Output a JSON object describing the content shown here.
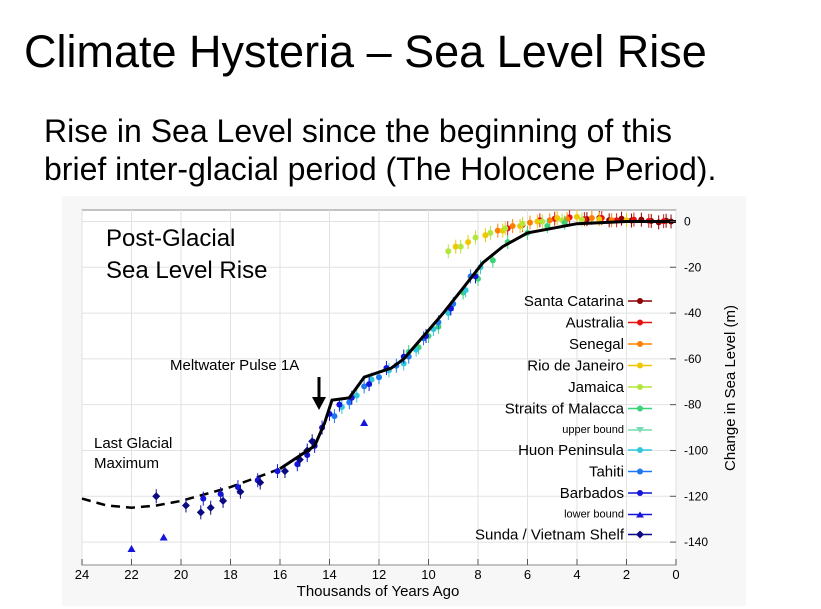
{
  "slide": {
    "title": "Climate Hysteria – Sea Level Rise",
    "subtitle_line1": "Rise in Sea Level since the beginning of this",
    "subtitle_line2": "brief inter-glacial period (The Holocene Period)."
  },
  "chart_data": {
    "type": "scatter",
    "title_line1": "Post-Glacial",
    "title_line2": "Sea Level Rise",
    "xlabel": "Thousands of Years Ago",
    "ylabel": "Change in Sea Level (m)",
    "xlim": [
      24,
      0
    ],
    "ylim": [
      -150,
      5
    ],
    "x_ticks": [
      24,
      22,
      20,
      18,
      16,
      14,
      12,
      10,
      8,
      6,
      4,
      2,
      0
    ],
    "y_ticks": [
      0,
      -20,
      -40,
      -60,
      -80,
      -100,
      -120,
      -140
    ],
    "grid": true,
    "legend_position": "right",
    "annotations": [
      {
        "text": "Meltwater Pulse 1A",
        "x": 14.6,
        "y": -80
      },
      {
        "text_line1": "Last Glacial",
        "text_line2": "Maximum",
        "x": 22.5,
        "y": -118
      }
    ],
    "trend_line": {
      "name": "",
      "x": [
        16,
        14.6,
        14.2,
        13.9,
        13.2,
        12.6,
        11.5,
        11.0,
        10.2,
        9.4,
        8.6,
        7.8,
        7.0,
        6.0,
        5.0,
        4.0,
        2.0,
        0.0
      ],
      "y": [
        -108,
        -98,
        -88,
        -78,
        -77,
        -68,
        -64,
        -60,
        -50,
        -40,
        -29,
        -18,
        -11,
        -5,
        -3,
        -1,
        0,
        0
      ]
    },
    "glacial_estimate": {
      "x": [
        24,
        23,
        22,
        21,
        20,
        19,
        18,
        17,
        16
      ],
      "y": [
        -121,
        -124,
        -125,
        -124,
        -122,
        -119,
        -116,
        -112,
        -108
      ]
    },
    "series": [
      {
        "name": "Santa Catarina",
        "color": "#8b0000",
        "marker": "circle",
        "x": [
          3.6,
          3.1,
          2.7,
          2.2,
          1.8,
          1.4,
          1.0,
          0.7,
          0.4,
          0.2
        ],
        "y": [
          1.0,
          1.5,
          0.5,
          1.2,
          0.4,
          0.8,
          0.2,
          -0.4,
          0.3,
          0.0
        ]
      },
      {
        "name": "Australia",
        "color": "#e81010",
        "marker": "circle",
        "x": [
          6.8,
          6.2,
          5.5,
          4.9,
          4.3,
          3.7,
          3.0,
          2.4,
          1.7,
          1.1,
          0.5
        ],
        "y": [
          -3.0,
          -1.5,
          0.5,
          1.2,
          1.8,
          1.0,
          1.5,
          0.5,
          0.8,
          0.3,
          0.1
        ]
      },
      {
        "name": "Senegal",
        "color": "#ff8000",
        "marker": "circle",
        "x": [
          7.2,
          6.6,
          5.9,
          5.1,
          4.4,
          3.4,
          2.6
        ],
        "y": [
          -4.0,
          -2.0,
          -0.5,
          0.5,
          1.0,
          1.5,
          0.5
        ]
      },
      {
        "name": "Rio de Janeiro",
        "color": "#f0c800",
        "marker": "circle",
        "x": [
          8.9,
          8.4,
          7.7,
          7.0,
          6.3,
          5.6,
          4.8,
          4.0,
          3.1,
          2.0
        ],
        "y": [
          -11.0,
          -9.0,
          -6.0,
          -4.0,
          -2.0,
          0.0,
          1.5,
          2.0,
          1.0,
          0.5
        ]
      },
      {
        "name": "Jamaica",
        "color": "#b4e63c",
        "marker": "circle",
        "x": [
          9.2,
          8.7,
          8.1,
          7.5,
          6.9,
          6.2,
          5.4,
          4.6,
          3.8
        ],
        "y": [
          -13.0,
          -11.0,
          -7.0,
          -5.0,
          -3.0,
          -1.0,
          0.0,
          0.5,
          0.8
        ]
      },
      {
        "name": "Straits of Malacca",
        "color": "#3cd278",
        "marker": "circle",
        "x": [
          10.8,
          10.4,
          10.0,
          9.6,
          9.1,
          8.6,
          8.0,
          7.4,
          6.8,
          6.0,
          5.2,
          4.5
        ],
        "y": [
          -57.0,
          -55.0,
          -50.0,
          -46.0,
          -38.0,
          -31.0,
          -25.0,
          -17.0,
          -9.0,
          -5.0,
          -2.0,
          -0.5
        ]
      },
      {
        "name": "Huon Peninsula",
        "color": "#32c8dc",
        "marker": "circle",
        "x": [
          13.5,
          12.9,
          12.3,
          11.6,
          11.0,
          10.5,
          9.8,
          9.2,
          8.5,
          7.9
        ],
        "y": [
          -81.0,
          -76.0,
          -69.0,
          -65.0,
          -62.0,
          -56.0,
          -47.0,
          -40.0,
          -30.0,
          -20.0
        ]
      },
      {
        "name": "Tahiti",
        "color": "#1e78f0",
        "marker": "circle",
        "x": [
          13.8,
          13.2,
          12.6,
          12.0,
          11.3,
          10.8,
          10.2,
          9.6,
          9.0,
          8.3
        ],
        "y": [
          -85.0,
          -79.0,
          -72.0,
          -68.0,
          -63.0,
          -59.0,
          -51.0,
          -44.0,
          -36.0,
          -24.0
        ]
      },
      {
        "name": "Barbados",
        "color": "#1414dc",
        "marker": "circle",
        "x": [
          19.1,
          18.4,
          17.7,
          16.9,
          16.1,
          15.3,
          14.9,
          14.6,
          14.3,
          14.0,
          13.6,
          13.1,
          12.4,
          11.7,
          11.0,
          10.1,
          9.1,
          8.1
        ],
        "y": [
          -121.0,
          -119.0,
          -116.0,
          -113.0,
          -109.0,
          -106.0,
          -102.0,
          -98.0,
          -90.0,
          -84.0,
          -80.0,
          -77.0,
          -71.0,
          -64.0,
          -59.0,
          -50.0,
          -38.0,
          -24.0
        ]
      },
      {
        "name": "Sunda / Vietnam Shelf",
        "color": "#0a0a82",
        "marker": "diamond",
        "x": [
          21.0,
          19.8,
          19.2,
          18.8,
          18.3,
          17.6,
          16.8,
          15.8,
          15.2,
          14.9,
          14.7
        ],
        "y": [
          -120.0,
          -124.0,
          -127.0,
          -125.0,
          -122.0,
          -118.0,
          -114.0,
          -109.0,
          -104.0,
          -100.0,
          -96.0
        ]
      }
    ],
    "upper_bound": {
      "name": "upper bound",
      "color": "#78dcb4"
    },
    "lower_bound": {
      "name": "lower bound",
      "color": "#1414dc",
      "x": [
        22.0,
        20.7,
        12.6
      ],
      "y": [
        -143.0,
        -138.0,
        -88.0
      ]
    }
  }
}
